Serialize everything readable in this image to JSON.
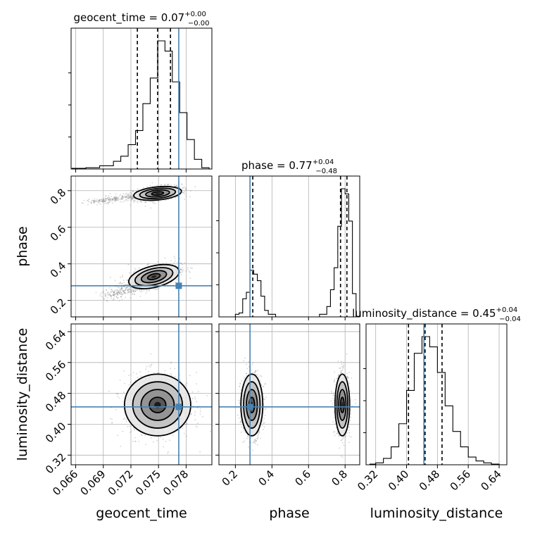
{
  "chart_data": {
    "type": "corner",
    "params": [
      "geocent_time",
      "phase",
      "luminosity_distance"
    ],
    "axis_labels": {
      "geocent_time": "geocent_time",
      "phase": "phase",
      "luminosity_distance": "luminosity_distance"
    },
    "titles": [
      {
        "param": "geocent_time",
        "name": "geocent_time",
        "median": "0.07",
        "upper": "+0.00",
        "lower": "−0.00"
      },
      {
        "param": "phase",
        "name": "phase",
        "median": "0.77",
        "upper": "+0.04",
        "lower": "−0.48"
      },
      {
        "param": "luminosity_distance",
        "name": "luminosity_distance",
        "median": "0.45",
        "upper": "+0.04",
        "lower": "−0.04"
      }
    ],
    "ranges": {
      "geocent_time": [
        0.0655,
        0.0808
      ],
      "phase": [
        0.11,
        0.88
      ],
      "luminosity_distance": [
        0.295,
        0.66
      ]
    },
    "ticks": {
      "geocent_time": {
        "values": [
          0.066,
          0.069,
          0.072,
          0.075,
          0.078
        ],
        "labels": [
          "0.066",
          "0.069",
          "0.072",
          "0.075",
          "0.078"
        ]
      },
      "phase": {
        "values": [
          0.2,
          0.4,
          0.6,
          0.8
        ],
        "labels": [
          "0.2",
          "0.4",
          "0.6",
          "0.8"
        ]
      },
      "luminosity_distance": {
        "values": [
          0.32,
          0.4,
          0.48,
          0.56,
          0.64
        ],
        "labels": [
          "0.32",
          "0.40",
          "0.48",
          "0.56",
          "0.64"
        ]
      }
    },
    "truths": {
      "geocent_time": 0.0772,
      "phase": 0.28,
      "luminosity_distance": 0.445
    },
    "quantiles": {
      "geocent_time": [
        0.0727,
        0.0749,
        0.0763
      ],
      "phase": [
        0.295,
        0.775,
        0.81
      ],
      "luminosity_distance": [
        0.405,
        0.448,
        0.492
      ]
    },
    "histograms": {
      "geocent_time": {
        "edges": [
          0.0656,
          0.0671,
          0.0686,
          0.0701,
          0.0709,
          0.0717,
          0.0725,
          0.0733,
          0.0741,
          0.0749,
          0.0757,
          0.0765,
          0.0773,
          0.0781,
          0.0789,
          0.0797,
          0.0805
        ],
        "heights": [
          0.005,
          0.01,
          0.025,
          0.06,
          0.1,
          0.19,
          0.3,
          0.51,
          0.71,
          1.0,
          0.92,
          0.68,
          0.44,
          0.23,
          0.075,
          0.01
        ]
      },
      "phase": {
        "edges": [
          0.12,
          0.16,
          0.2,
          0.22,
          0.24,
          0.26,
          0.28,
          0.3,
          0.32,
          0.34,
          0.36,
          0.38,
          0.42,
          0.6,
          0.66,
          0.7,
          0.72,
          0.74,
          0.76,
          0.78,
          0.8,
          0.82,
          0.84,
          0.86
        ],
        "heights": [
          0.0,
          0.0,
          0.02,
          0.03,
          0.14,
          0.19,
          0.36,
          0.33,
          0.28,
          0.16,
          0.05,
          0.02,
          0.0,
          0.0,
          0.02,
          0.08,
          0.21,
          0.38,
          0.7,
          0.99,
          0.95,
          0.74,
          0.18
        ]
      },
      "luminosity_distance": {
        "edges": [
          0.305,
          0.32,
          0.34,
          0.36,
          0.38,
          0.4,
          0.42,
          0.44,
          0.46,
          0.48,
          0.5,
          0.52,
          0.54,
          0.56,
          0.58,
          0.6,
          0.62,
          0.64
        ],
        "heights": [
          0.005,
          0.015,
          0.05,
          0.14,
          0.32,
          0.58,
          0.87,
          1.0,
          0.92,
          0.72,
          0.46,
          0.26,
          0.14,
          0.06,
          0.03,
          0.015,
          0.005
        ]
      }
    },
    "panels_2d": [
      {
        "x": "geocent_time",
        "y": "phase",
        "modes": [
          {
            "cx": 0.0749,
            "cy": 0.785,
            "sx": 0.0013,
            "sy": 0.02,
            "corr": 0.35,
            "tail_to": [
              0.068,
              0.74
            ]
          },
          {
            "cx": 0.0745,
            "cy": 0.33,
            "sx": 0.0014,
            "sy": 0.035,
            "corr": 0.55,
            "tail_to": [
              0.0695,
              0.22
            ]
          }
        ]
      },
      {
        "x": "geocent_time",
        "y": "luminosity_distance",
        "modes": [
          {
            "cx": 0.0749,
            "cy": 0.45,
            "sx": 0.0018,
            "sy": 0.04,
            "corr": 0.0
          }
        ]
      },
      {
        "x": "phase",
        "y": "luminosity_distance",
        "modes": [
          {
            "cx": 0.29,
            "cy": 0.45,
            "sx": 0.03,
            "sy": 0.04,
            "corr": 0.0
          },
          {
            "cx": 0.785,
            "cy": 0.45,
            "sx": 0.02,
            "sy": 0.04,
            "corr": 0.0
          }
        ]
      }
    ],
    "colors": {
      "truth": "#4682b4",
      "line": "#000000",
      "grid": "#b0b0b0",
      "points": "#808080"
    },
    "grid": true
  }
}
